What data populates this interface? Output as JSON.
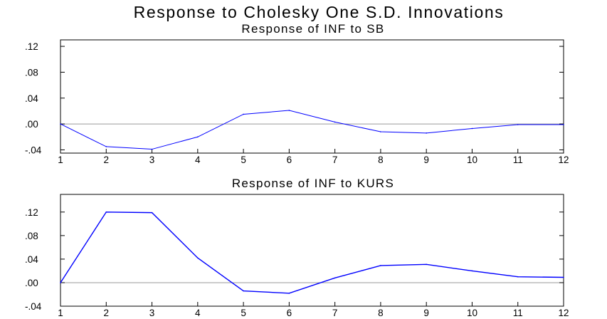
{
  "title": "Response to Cholesky One S.D. Innovations",
  "chart_data": [
    {
      "type": "line",
      "title": "Response of INF to SB",
      "x": [
        1,
        2,
        3,
        4,
        5,
        6,
        7,
        8,
        9,
        10,
        11,
        12
      ],
      "x_tick_labels": [
        "1",
        "2",
        "3",
        "4",
        "5",
        "6",
        "7",
        "8",
        "9",
        "10",
        "11",
        "12"
      ],
      "y_tick_labels": [
        ".12",
        ".08",
        ".04",
        ".00",
        "-.04"
      ],
      "y_ticks": [
        0.12,
        0.08,
        0.04,
        0.0,
        -0.04
      ],
      "ylim": [
        -0.045,
        0.13
      ],
      "zero_line": true,
      "grid": false,
      "series": [
        {
          "color": "#0000ff",
          "values": [
            0.0,
            -0.035,
            -0.039,
            -0.02,
            0.015,
            0.021,
            0.003,
            -0.012,
            -0.014,
            -0.007,
            -0.001,
            -0.001
          ]
        }
      ]
    },
    {
      "type": "line",
      "title": "Response of INF to KURS",
      "x": [
        1,
        2,
        3,
        4,
        5,
        6,
        7,
        8,
        9,
        10,
        11,
        12
      ],
      "x_tick_labels": [
        "1",
        "2",
        "3",
        "4",
        "5",
        "6",
        "7",
        "8",
        "9",
        "10",
        "11",
        "12"
      ],
      "y_tick_labels": [
        ".12",
        ".08",
        ".04",
        ".00",
        "-.04"
      ],
      "y_ticks": [
        0.12,
        0.08,
        0.04,
        0.0,
        -0.04
      ],
      "ylim": [
        -0.04,
        0.15
      ],
      "zero_line": true,
      "grid": false,
      "series": [
        {
          "color": "#0000ff",
          "values": [
            0.0,
            0.12,
            0.119,
            0.042,
            -0.014,
            -0.018,
            0.008,
            0.029,
            0.031,
            0.02,
            0.01,
            0.009
          ]
        }
      ]
    }
  ]
}
